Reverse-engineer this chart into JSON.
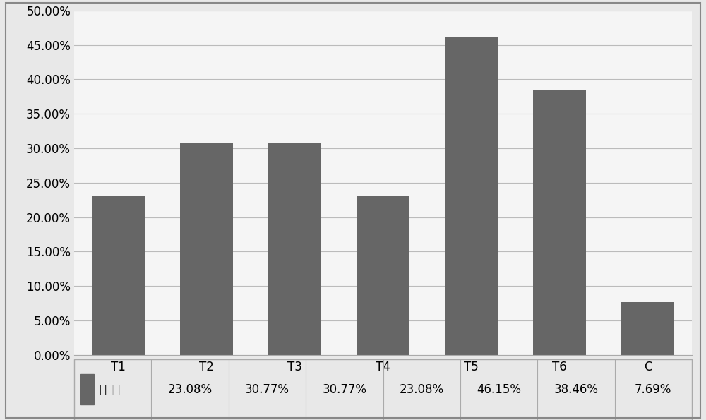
{
  "categories": [
    "T1",
    "T2",
    "T3",
    "T4",
    "T5",
    "T6",
    "C"
  ],
  "values": [
    0.2308,
    0.3077,
    0.3077,
    0.2308,
    0.4615,
    0.3846,
    0.0769
  ],
  "labels": [
    "23.08%",
    "30.77%",
    "30.77%",
    "23.08%",
    "46.15%",
    "38.46%",
    "7.69%"
  ],
  "bar_color": "#666666",
  "background_color": "#e8e8e8",
  "plot_background": "#f5f5f5",
  "ylim": [
    0,
    0.5
  ],
  "yticks": [
    0.0,
    0.05,
    0.1,
    0.15,
    0.2,
    0.25,
    0.3,
    0.35,
    0.4,
    0.45,
    0.5
  ],
  "legend_label": "发情率",
  "grid_color": "#bbbbbb",
  "border_color": "#aaaaaa",
  "tick_fontsize": 12,
  "legend_fontsize": 12,
  "table_fontsize": 12
}
